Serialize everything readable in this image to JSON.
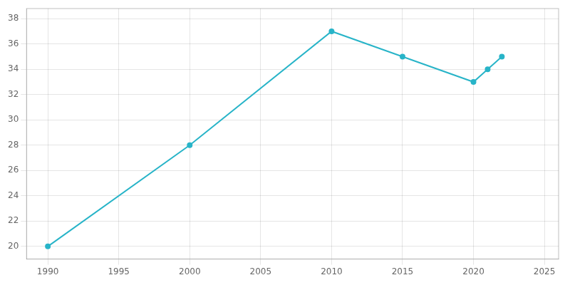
{
  "chart_data": {
    "type": "line",
    "x": [
      1990,
      2000,
      2010,
      2015,
      2020,
      2021,
      2022
    ],
    "values": [
      20,
      28,
      37,
      35,
      33,
      34,
      35
    ],
    "color": "#28b4c8",
    "marker": "circle",
    "xlim": [
      1988.5,
      2026
    ],
    "xticks": [
      1990,
      1995,
      2000,
      2005,
      2010,
      2015,
      2020,
      2025
    ],
    "ylim": [
      19.0,
      38.8
    ],
    "yticks": [
      20,
      22,
      24,
      26,
      28,
      30,
      32,
      34,
      36,
      38
    ],
    "grid": true
  }
}
